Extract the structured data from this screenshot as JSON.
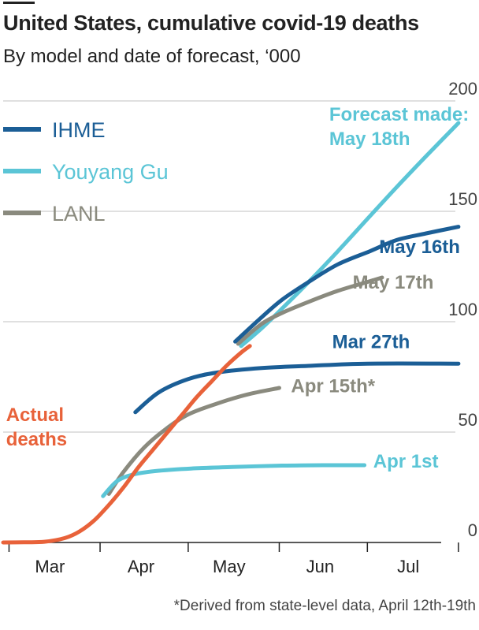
{
  "header": {
    "title": "United States, cumulative covid-19 deaths",
    "subtitle": "By model and date of forecast, ‘000"
  },
  "footnote": "*Derived from state-level data, April 12th-19th",
  "chart_data": {
    "type": "line",
    "title": "United States, cumulative covid-19 deaths",
    "subtitle": "By model and date of forecast, ‘000",
    "xlabel": "",
    "ylabel": "",
    "x_axis": {
      "type": "date",
      "range": [
        "2020-02-27",
        "2020-08-07"
      ],
      "ticks": [
        "2020-02-29",
        "2020-03-31",
        "2020-04-30",
        "2020-05-31",
        "2020-06-30",
        "2020-07-31"
      ],
      "labels": [
        {
          "date": "2020-03-15",
          "text": "Mar"
        },
        {
          "date": "2020-04-15",
          "text": "Apr"
        },
        {
          "date": "2020-05-15",
          "text": "May"
        },
        {
          "date": "2020-06-15",
          "text": "Jun"
        },
        {
          "date": "2020-07-15",
          "text": "Jul"
        }
      ]
    },
    "y_axis": {
      "range": [
        0,
        200
      ],
      "ticks": [
        0,
        50,
        100,
        150,
        200
      ],
      "position": "right",
      "grid": true
    },
    "colors": {
      "IHME": "#1b5e96",
      "Youyang Gu": "#5bc5d6",
      "LANL": "#8a8a7e",
      "actual": "#e8623a"
    },
    "legend": {
      "placement": "top-left",
      "entries": [
        {
          "name": "IHME",
          "color": "#1b5e96"
        },
        {
          "name": "Youyang Gu",
          "color": "#5bc5d6"
        },
        {
          "name": "LANL",
          "color": "#8a8a7e"
        }
      ]
    },
    "series": [
      {
        "label": "Actual deaths",
        "model": "actual",
        "color": "#e8623a",
        "points": [
          [
            "2020-02-27",
            0
          ],
          [
            "2020-03-05",
            0.1
          ],
          [
            "2020-03-12",
            0.3
          ],
          [
            "2020-03-19",
            2
          ],
          [
            "2020-03-24",
            5
          ],
          [
            "2020-03-29",
            10
          ],
          [
            "2020-04-03",
            17
          ],
          [
            "2020-04-08",
            25
          ],
          [
            "2020-04-13",
            34
          ],
          [
            "2020-04-18",
            42
          ],
          [
            "2020-04-23",
            50
          ],
          [
            "2020-04-28",
            58
          ],
          [
            "2020-05-03",
            66
          ],
          [
            "2020-05-08",
            73
          ],
          [
            "2020-05-13",
            80
          ],
          [
            "2020-05-18",
            86
          ],
          [
            "2020-05-21",
            89
          ]
        ]
      },
      {
        "label": "Forecast made: May 18th",
        "model": "Youyang Gu",
        "color": "#5bc5d6",
        "points": [
          [
            "2020-05-18",
            89
          ],
          [
            "2020-05-25",
            97
          ],
          [
            "2020-06-01",
            106
          ],
          [
            "2020-06-10",
            118
          ],
          [
            "2020-06-20",
            132
          ],
          [
            "2020-07-01",
            148
          ],
          [
            "2020-07-10",
            161
          ],
          [
            "2020-07-20",
            175
          ],
          [
            "2020-07-31",
            190
          ]
        ]
      },
      {
        "label": "May 16th",
        "model": "IHME",
        "color": "#1b5e96",
        "points": [
          [
            "2020-05-16",
            91
          ],
          [
            "2020-05-25",
            102
          ],
          [
            "2020-06-01",
            110
          ],
          [
            "2020-06-10",
            118
          ],
          [
            "2020-06-20",
            126
          ],
          [
            "2020-07-01",
            132
          ],
          [
            "2020-07-10",
            137
          ],
          [
            "2020-07-20",
            140
          ],
          [
            "2020-07-31",
            143
          ]
        ]
      },
      {
        "label": "May 17th",
        "model": "LANL",
        "color": "#8a8a7e",
        "points": [
          [
            "2020-05-17",
            90
          ],
          [
            "2020-05-25",
            99
          ],
          [
            "2020-06-01",
            104
          ],
          [
            "2020-06-10",
            109
          ],
          [
            "2020-06-20",
            114
          ],
          [
            "2020-06-30",
            118
          ],
          [
            "2020-07-05",
            120
          ]
        ]
      },
      {
        "label": "Mar 27th",
        "model": "IHME",
        "color": "#1b5e96",
        "points": [
          [
            "2020-04-12",
            59
          ],
          [
            "2020-04-20",
            68
          ],
          [
            "2020-04-30",
            74
          ],
          [
            "2020-05-10",
            77
          ],
          [
            "2020-05-25",
            79
          ],
          [
            "2020-06-10",
            80
          ],
          [
            "2020-06-30",
            81
          ],
          [
            "2020-07-31",
            81
          ]
        ]
      },
      {
        "label": "Apr 15th*",
        "model": "LANL",
        "color": "#8a8a7e",
        "points": [
          [
            "2020-04-03",
            22
          ],
          [
            "2020-04-08",
            32
          ],
          [
            "2020-04-15",
            43
          ],
          [
            "2020-04-22",
            51
          ],
          [
            "2020-04-30",
            58
          ],
          [
            "2020-05-10",
            63
          ],
          [
            "2020-05-20",
            67
          ],
          [
            "2020-05-31",
            70
          ]
        ]
      },
      {
        "label": "Apr 1st",
        "model": "Youyang Gu",
        "color": "#5bc5d6",
        "points": [
          [
            "2020-04-01",
            21
          ],
          [
            "2020-04-06",
            28
          ],
          [
            "2020-04-12",
            31
          ],
          [
            "2020-04-20",
            32.5
          ],
          [
            "2020-05-01",
            33.5
          ],
          [
            "2020-05-15",
            34.2
          ],
          [
            "2020-06-01",
            34.8
          ],
          [
            "2020-06-15",
            35
          ],
          [
            "2020-06-29",
            35
          ]
        ]
      }
    ],
    "annotations": [
      {
        "text": "Forecast made:",
        "date": "2020-06-17",
        "value": 191,
        "color": "#5bc5d6"
      },
      {
        "text": "May 18th",
        "date": "2020-06-17",
        "value": 180,
        "color": "#5bc5d6"
      },
      {
        "text": "May 16th",
        "date": "2020-07-04",
        "value": 131,
        "color": "#1b5e96"
      },
      {
        "text": "May 17th",
        "date": "2020-06-25",
        "value": 115,
        "color": "#8a8a7e"
      },
      {
        "text": "Mar 27th",
        "date": "2020-06-18",
        "value": 88,
        "color": "#1b5e96"
      },
      {
        "text": "Apr 15th*",
        "date": "2020-06-04",
        "value": 68,
        "color": "#8a8a7e"
      },
      {
        "text": "Apr 1st",
        "date": "2020-07-02",
        "value": 34,
        "color": "#5bc5d6"
      },
      {
        "text": "Actual",
        "date": "2020-02-28",
        "value": 55,
        "color": "#e8623a"
      },
      {
        "text": "deaths",
        "date": "2020-02-28",
        "value": 44,
        "color": "#e8623a"
      }
    ]
  }
}
